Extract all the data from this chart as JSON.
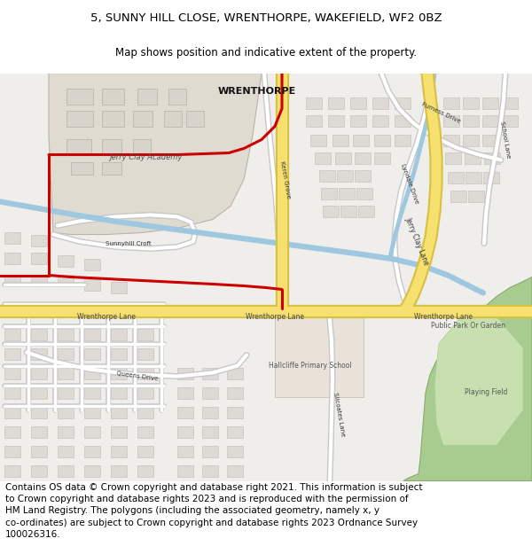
{
  "title_line1": "5, SUNNY HILL CLOSE, WRENTHORPE, WAKEFIELD, WF2 0BZ",
  "title_line2": "Map shows position and indicative extent of the property.",
  "title_fontsize": 9.5,
  "subtitle_fontsize": 8.5,
  "copyright_text": "Contains OS data © Crown copyright and database right 2021. This information is subject\nto Crown copyright and database rights 2023 and is reproduced with the permission of\nHM Land Registry. The polygons (including the associated geometry, namely x, y\nco-ordinates) are subject to Crown copyright and database rights 2023 Ordnance Survey\n100026316.",
  "copyright_fontsize": 7.5,
  "background_color": "#ffffff",
  "map_bg": "#f0eeeb",
  "building_color": "#dddad5",
  "building_edge": "#c0bdb8",
  "road_major_color": "#f5e070",
  "road_major_edge": "#d8c040",
  "road_minor_color": "#ffffff",
  "road_minor_edge": "#c8c8c8",
  "water_color": "#9ec8e0",
  "park_color": "#a8cc90",
  "park_edge": "#88aa70",
  "park_light": "#c8e0b0",
  "academy_fill": "#e0dbd0",
  "academy_edge": "#b8b4a8",
  "red_line_color": "#cc0000",
  "blue_line_color": "#5090c0",
  "label_dark": "#222222",
  "label_mid": "#444444",
  "label_light": "#666666"
}
